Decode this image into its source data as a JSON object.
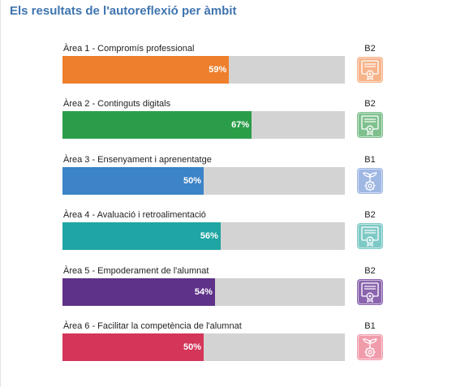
{
  "title": "Els resultats de l'autoreflexió per àmbit",
  "chart_data": {
    "type": "bar",
    "orientation": "horizontal",
    "title": "Els resultats de l'autoreflexió per àmbit",
    "xlim": [
      0,
      100
    ],
    "grid": false,
    "categories": [
      "Àrea 1 - Compromís professional",
      "Àrea 2 - Continguts digitals",
      "Àrea 3 - Ensenyament i aprenentatge",
      "Àrea 4 - Avaluació i retroalimentació",
      "Àrea 5 - Empoderament de l'alumnat",
      "Àrea 6 - Facilitar la competència de l'alumnat"
    ],
    "values": [
      59,
      67,
      50,
      56,
      54,
      50
    ],
    "value_labels": [
      "59%",
      "67%",
      "50%",
      "56%",
      "54%",
      "50%"
    ],
    "levels": [
      "B2",
      "B2",
      "B1",
      "B2",
      "B2",
      "B1"
    ]
  },
  "areas": [
    {
      "label": "Àrea 1 - Compromís professional",
      "value": 59,
      "pct_label": "59%",
      "level": "B2",
      "color": "#ee7f2d",
      "icon": "certificate-icon"
    },
    {
      "label": "Àrea 2 - Continguts digitals",
      "value": 67,
      "pct_label": "67%",
      "level": "B2",
      "color": "#2b9d48",
      "icon": "certificate-icon"
    },
    {
      "label": "Àrea 3 - Ensenyament i aprenentatge",
      "value": 50,
      "pct_label": "50%",
      "level": "B1",
      "color": "#3c83c8",
      "icon": "sprout-gear-icon"
    },
    {
      "label": "Àrea 4 - Avaluació i retroalimentació",
      "value": 56,
      "pct_label": "56%",
      "level": "B2",
      "color": "#1fa5a3",
      "icon": "certificate-icon"
    },
    {
      "label": "Àrea 5 - Empoderament de l'alumnat",
      "value": 54,
      "pct_label": "54%",
      "level": "B2",
      "color": "#5e3289",
      "icon": "certificate-icon"
    },
    {
      "label": "Àrea 6 - Facilitar la competència de l'alumnat",
      "value": 50,
      "pct_label": "50%",
      "level": "B1",
      "color": "#d4365a",
      "icon": "sprout-gear-icon"
    }
  ],
  "colors": {
    "title": "#3f74b0",
    "track": "#d3d3d3",
    "badge_light": {
      "#ee7f2d": "#f7b389",
      "#2b9d48": "#7fc08e",
      "#3c83c8": "#9fb7e3",
      "#1fa5a3": "#7dc9c6",
      "#5e3289": "#8a64ae",
      "#d4365a": "#f19cab"
    }
  }
}
